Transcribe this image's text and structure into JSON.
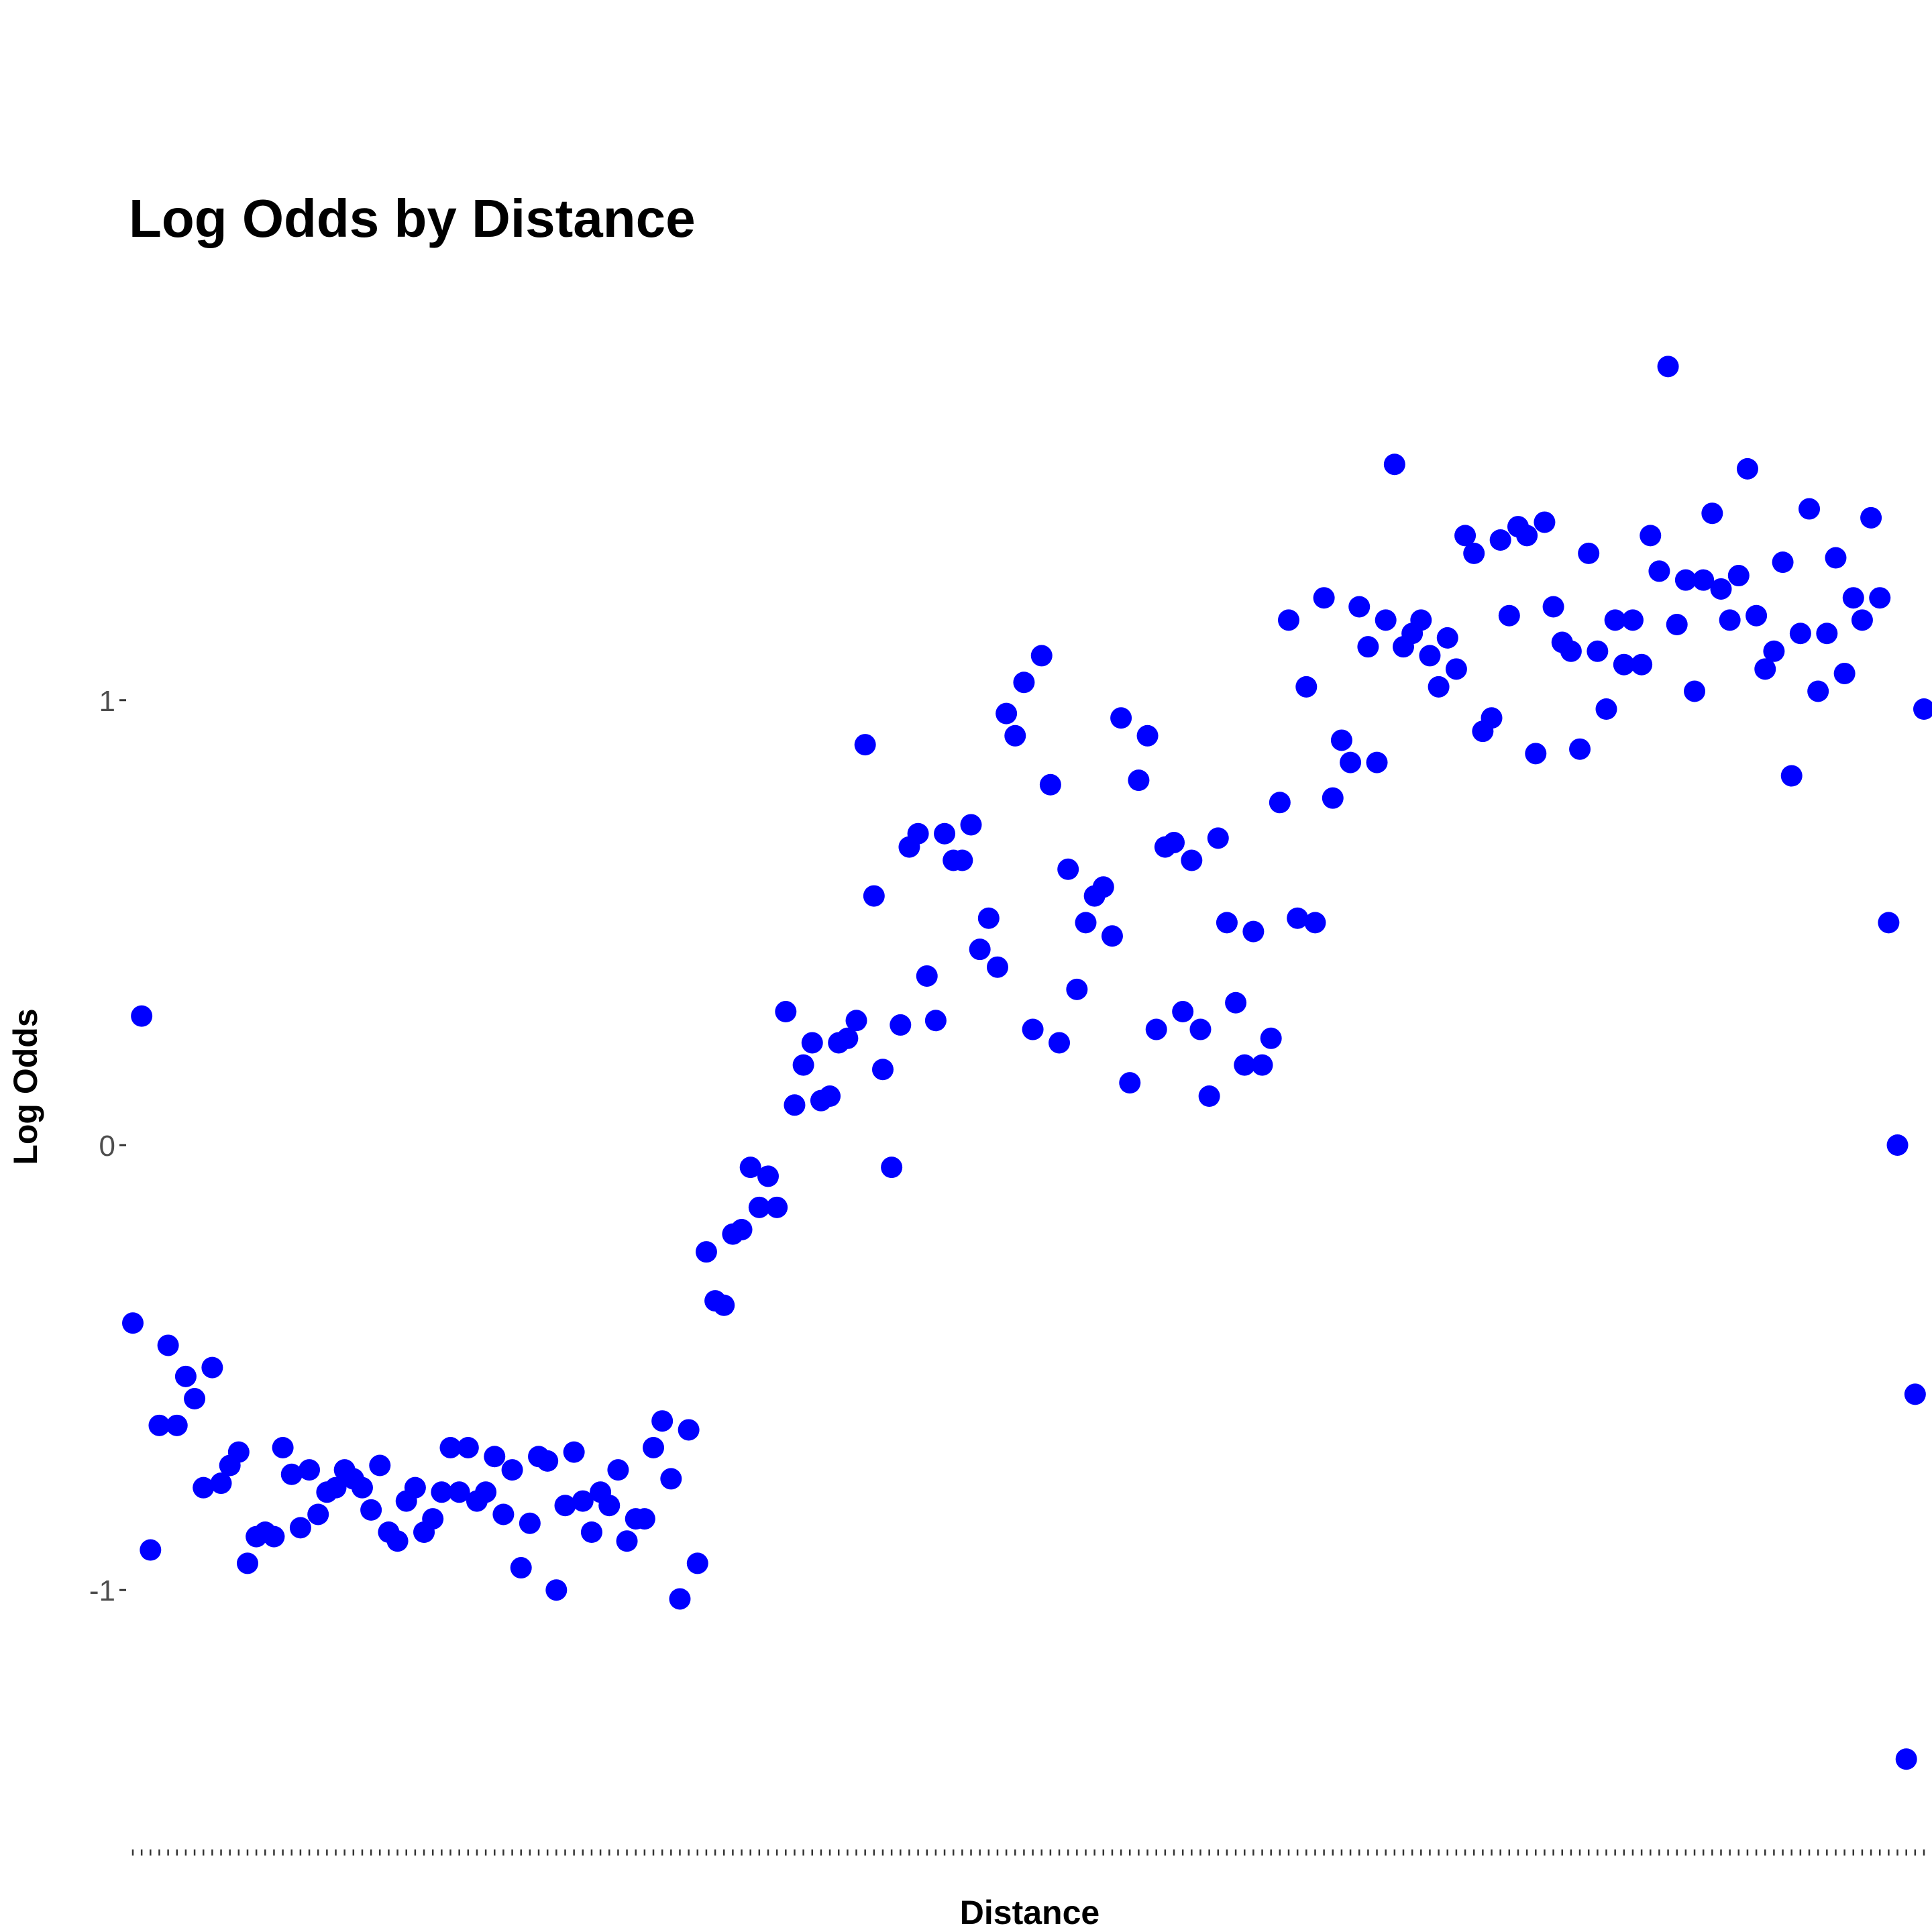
{
  "chart_data": {
    "type": "scatter",
    "title": "Log Odds by Distance",
    "xlabel": "Distance",
    "ylabel": "Log Odds",
    "y_ticks": [
      -1,
      0,
      1
    ],
    "y_tick_labels": [
      "-1",
      "0",
      "1"
    ],
    "xlim": [
      1,
      200
    ],
    "ylim": [
      -1.55,
      1.85
    ],
    "grid": false,
    "legend": "none",
    "point_color": "#0000ff",
    "x_axis_ticks_visible": true,
    "x_tick_labels_visible": false,
    "points": [
      [
        1,
        -0.4
      ],
      [
        2,
        0.29
      ],
      [
        3,
        -0.91
      ],
      [
        4,
        -0.63
      ],
      [
        5,
        -0.45
      ],
      [
        6,
        -0.63
      ],
      [
        7,
        -0.52
      ],
      [
        8,
        -0.57
      ],
      [
        9,
        -0.77
      ],
      [
        10,
        -0.5
      ],
      [
        11,
        -0.76
      ],
      [
        12,
        -0.72
      ],
      [
        13,
        -0.69
      ],
      [
        14,
        -0.94
      ],
      [
        15,
        -0.88
      ],
      [
        16,
        -0.87
      ],
      [
        17,
        -0.88
      ],
      [
        18,
        -0.68
      ],
      [
        19,
        -0.74
      ],
      [
        20,
        -0.86
      ],
      [
        21,
        -0.73
      ],
      [
        22,
        -0.83
      ],
      [
        23,
        -0.78
      ],
      [
        24,
        -0.77
      ],
      [
        25,
        -0.73
      ],
      [
        26,
        -0.75
      ],
      [
        27,
        -0.77
      ],
      [
        28,
        -0.82
      ],
      [
        29,
        -0.72
      ],
      [
        30,
        -0.87
      ],
      [
        31,
        -0.89
      ],
      [
        32,
        -0.8
      ],
      [
        33,
        -0.77
      ],
      [
        34,
        -0.87
      ],
      [
        35,
        -0.84
      ],
      [
        36,
        -0.78
      ],
      [
        37,
        -0.68
      ],
      [
        38,
        -0.78
      ],
      [
        39,
        -0.68
      ],
      [
        40,
        -0.8
      ],
      [
        41,
        -0.78
      ],
      [
        42,
        -0.7
      ],
      [
        43,
        -0.83
      ],
      [
        44,
        -0.73
      ],
      [
        45,
        -0.95
      ],
      [
        46,
        -0.85
      ],
      [
        47,
        -0.7
      ],
      [
        48,
        -0.71
      ],
      [
        49,
        -1.0
      ],
      [
        50,
        -0.81
      ],
      [
        51,
        -0.69
      ],
      [
        52,
        -0.8
      ],
      [
        53,
        -0.87
      ],
      [
        54,
        -0.78
      ],
      [
        55,
        -0.81
      ],
      [
        56,
        -0.73
      ],
      [
        57,
        -0.89
      ],
      [
        58,
        -0.84
      ],
      [
        59,
        -0.84
      ],
      [
        60,
        -0.68
      ],
      [
        61,
        -0.62
      ],
      [
        62,
        -0.75
      ],
      [
        63,
        -1.02
      ],
      [
        64,
        -0.64
      ],
      [
        65,
        -0.94
      ],
      [
        66,
        -0.24
      ],
      [
        67,
        -0.35
      ],
      [
        68,
        -0.36
      ],
      [
        69,
        -0.2
      ],
      [
        70,
        -0.19
      ],
      [
        71,
        -0.05
      ],
      [
        72,
        -0.14
      ],
      [
        73,
        -0.07
      ],
      [
        74,
        -0.14
      ],
      [
        75,
        0.3
      ],
      [
        76,
        0.09
      ],
      [
        77,
        0.18
      ],
      [
        78,
        0.23
      ],
      [
        79,
        0.1
      ],
      [
        80,
        0.11
      ],
      [
        81,
        0.23
      ],
      [
        82,
        0.24
      ],
      [
        83,
        0.28
      ],
      [
        84,
        0.9
      ],
      [
        85,
        0.56
      ],
      [
        86,
        0.17
      ],
      [
        87,
        -0.05
      ],
      [
        88,
        0.27
      ],
      [
        89,
        0.67
      ],
      [
        90,
        0.7
      ],
      [
        91,
        0.38
      ],
      [
        92,
        0.28
      ],
      [
        93,
        0.7
      ],
      [
        94,
        0.64
      ],
      [
        95,
        0.64
      ],
      [
        96,
        0.72
      ],
      [
        97,
        0.44
      ],
      [
        98,
        0.51
      ],
      [
        99,
        0.4
      ],
      [
        100,
        0.97
      ],
      [
        101,
        0.92
      ],
      [
        102,
        1.04
      ],
      [
        103,
        0.26
      ],
      [
        104,
        1.1
      ],
      [
        105,
        0.81
      ],
      [
        106,
        0.23
      ],
      [
        107,
        0.62
      ],
      [
        108,
        0.35
      ],
      [
        109,
        0.5
      ],
      [
        110,
        0.56
      ],
      [
        111,
        0.58
      ],
      [
        112,
        0.47
      ],
      [
        113,
        0.96
      ],
      [
        114,
        0.14
      ],
      [
        115,
        0.82
      ],
      [
        116,
        0.92
      ],
      [
        117,
        0.26
      ],
      [
        118,
        0.67
      ],
      [
        119,
        0.68
      ],
      [
        120,
        0.3
      ],
      [
        121,
        0.64
      ],
      [
        122,
        0.26
      ],
      [
        123,
        0.11
      ],
      [
        124,
        0.69
      ],
      [
        125,
        0.5
      ],
      [
        126,
        0.32
      ],
      [
        127,
        0.18
      ],
      [
        128,
        0.48
      ],
      [
        129,
        0.18
      ],
      [
        130,
        0.24
      ],
      [
        131,
        0.77
      ],
      [
        132,
        1.18
      ],
      [
        133,
        0.51
      ],
      [
        134,
        1.03
      ],
      [
        135,
        0.5
      ],
      [
        136,
        1.23
      ],
      [
        137,
        0.78
      ],
      [
        138,
        0.91
      ],
      [
        139,
        0.86
      ],
      [
        140,
        1.21
      ],
      [
        141,
        1.12
      ],
      [
        142,
        0.86
      ],
      [
        143,
        1.18
      ],
      [
        144,
        1.53
      ],
      [
        145,
        1.12
      ],
      [
        146,
        1.15
      ],
      [
        147,
        1.18
      ],
      [
        148,
        1.1
      ],
      [
        149,
        1.03
      ],
      [
        150,
        1.14
      ],
      [
        151,
        1.07
      ],
      [
        152,
        1.37
      ],
      [
        153,
        1.33
      ],
      [
        154,
        0.93
      ],
      [
        155,
        0.96
      ],
      [
        156,
        1.36
      ],
      [
        157,
        1.19
      ],
      [
        158,
        1.39
      ],
      [
        159,
        1.37
      ],
      [
        160,
        0.88
      ],
      [
        161,
        1.4
      ],
      [
        162,
        1.21
      ],
      [
        163,
        1.13
      ],
      [
        164,
        1.11
      ],
      [
        165,
        0.89
      ],
      [
        166,
        1.33
      ],
      [
        167,
        1.11
      ],
      [
        168,
        0.98
      ],
      [
        169,
        1.18
      ],
      [
        170,
        1.08
      ],
      [
        171,
        1.18
      ],
      [
        172,
        1.08
      ],
      [
        173,
        1.37
      ],
      [
        174,
        1.29
      ],
      [
        175,
        1.75
      ],
      [
        176,
        1.17
      ],
      [
        177,
        1.27
      ],
      [
        178,
        1.02
      ],
      [
        179,
        1.27
      ],
      [
        180,
        1.42
      ],
      [
        181,
        1.25
      ],
      [
        182,
        1.18
      ],
      [
        183,
        1.28
      ],
      [
        184,
        1.52
      ],
      [
        185,
        1.19
      ],
      [
        186,
        1.07
      ],
      [
        187,
        1.11
      ],
      [
        188,
        1.31
      ],
      [
        189,
        0.83
      ],
      [
        190,
        1.15
      ],
      [
        191,
        1.43
      ],
      [
        192,
        1.02
      ],
      [
        193,
        1.15
      ],
      [
        194,
        1.32
      ],
      [
        195,
        1.06
      ],
      [
        196,
        1.23
      ],
      [
        197,
        1.18
      ],
      [
        198,
        1.41
      ],
      [
        199,
        1.23
      ],
      [
        200,
        0.5
      ],
      [
        201,
        0.0
      ],
      [
        202,
        -1.38
      ],
      [
        203,
        -0.56
      ],
      [
        204,
        0.98
      ]
    ]
  }
}
